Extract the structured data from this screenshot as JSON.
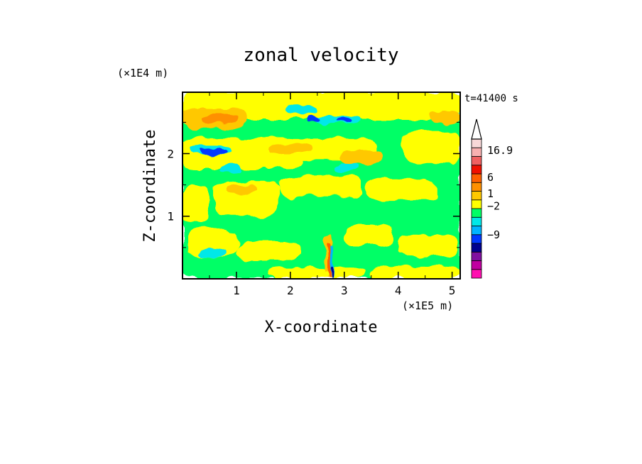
{
  "chart_data": {
    "type": "heatmap",
    "title": "zonal velocity",
    "xlabel": "X-coordinate",
    "ylabel": "Z-coordinate",
    "x_unit": "(×1E5 m)",
    "y_unit": "(×1E4 m)",
    "time_label": "t=41400 s",
    "xlim": [
      0,
      5.15
    ],
    "ylim": [
      0,
      2.98
    ],
    "x_ticks": [
      1,
      2,
      3,
      4,
      5
    ],
    "y_ticks": [
      1,
      2
    ],
    "colorbar": {
      "colors": [
        "#ff10b0",
        "#c000a0",
        "#8010a0",
        "#000090",
        "#0038ff",
        "#00b4ff",
        "#00e8e8",
        "#00ff66",
        "#ffff00",
        "#ffc800",
        "#ff9000",
        "#ff6000",
        "#f01000",
        "#f06060",
        "#f8b0b0",
        "#f8d8d8"
      ],
      "labels": [
        {
          "text": "16.9",
          "level": 14.7
        },
        {
          "text": "6",
          "level": 11.6
        },
        {
          "text": "1",
          "level": 9.7
        },
        {
          "text": "−2",
          "level": 8.3
        },
        {
          "text": "−9",
          "level": 5.0
        }
      ],
      "extend_max": true
    },
    "regions": [
      {
        "x": [
          0,
          5.15
        ],
        "y": [
          0,
          2.98
        ],
        "color": "#00ff66"
      },
      {
        "x": [
          0,
          5.15
        ],
        "y": [
          2.55,
          2.98
        ],
        "color": "#ffff00"
      },
      {
        "x": [
          0,
          2.2
        ],
        "y": [
          1.75,
          2.25
        ],
        "color": "#ffff00"
      },
      {
        "x": [
          4.1,
          5.15
        ],
        "y": [
          1.85,
          2.35
        ],
        "color": "#ffff00"
      },
      {
        "x": [
          1.6,
          3.6
        ],
        "y": [
          1.9,
          2.25
        ],
        "color": "#ffff00"
      },
      {
        "x": [
          0,
          0.5
        ],
        "y": [
          0.9,
          1.5
        ],
        "color": "#ffff00"
      },
      {
        "x": [
          0.6,
          1.8
        ],
        "y": [
          1.0,
          1.55
        ],
        "color": "#ffff00"
      },
      {
        "x": [
          1.8,
          3.3
        ],
        "y": [
          1.3,
          1.65
        ],
        "color": "#ffff00"
      },
      {
        "x": [
          3.4,
          4.7
        ],
        "y": [
          1.25,
          1.6
        ],
        "color": "#ffff00"
      },
      {
        "x": [
          0.1,
          1.0
        ],
        "y": [
          0.35,
          0.8
        ],
        "color": "#ffff00"
      },
      {
        "x": [
          1.0,
          2.2
        ],
        "y": [
          0.3,
          0.6
        ],
        "color": "#ffff00"
      },
      {
        "x": [
          3.0,
          3.9
        ],
        "y": [
          0.55,
          0.85
        ],
        "color": "#ffff00"
      },
      {
        "x": [
          4.0,
          5.1
        ],
        "y": [
          0.35,
          0.7
        ],
        "color": "#ffff00"
      },
      {
        "x": [
          1.6,
          3.4
        ],
        "y": [
          0.0,
          0.18
        ],
        "color": "#ffff00"
      },
      {
        "x": [
          3.5,
          5.15
        ],
        "y": [
          0.0,
          0.2
        ],
        "color": "#ffff00"
      },
      {
        "x": [
          0.0,
          1.2
        ],
        "y": [
          2.4,
          2.72
        ],
        "color": "#ffc800"
      },
      {
        "x": [
          0.4,
          1.0
        ],
        "y": [
          2.48,
          2.64
        ],
        "color": "#ff9000"
      },
      {
        "x": [
          1.6,
          2.4
        ],
        "y": [
          2.0,
          2.15
        ],
        "color": "#ffc800"
      },
      {
        "x": [
          2.9,
          3.7
        ],
        "y": [
          1.85,
          2.05
        ],
        "color": "#ffc800"
      },
      {
        "x": [
          4.6,
          5.15
        ],
        "y": [
          2.48,
          2.68
        ],
        "color": "#ffc800"
      },
      {
        "x": [
          0.8,
          1.4
        ],
        "y": [
          1.38,
          1.5
        ],
        "color": "#ffc800"
      },
      {
        "x": [
          1.9,
          2.5
        ],
        "y": [
          2.62,
          2.78
        ],
        "color": "#00e8e8"
      },
      {
        "x": [
          2.4,
          3.3
        ],
        "y": [
          2.48,
          2.6
        ],
        "color": "#00e8e8"
      },
      {
        "x": [
          0.1,
          0.9
        ],
        "y": [
          1.98,
          2.12
        ],
        "color": "#00e8e8"
      },
      {
        "x": [
          0.7,
          1.1
        ],
        "y": [
          1.68,
          1.8
        ],
        "color": "#00e8e8"
      },
      {
        "x": [
          2.8,
          3.3
        ],
        "y": [
          1.72,
          1.86
        ],
        "color": "#00e8e8"
      },
      {
        "x": [
          0.3,
          0.8
        ],
        "y": [
          0.35,
          0.48
        ],
        "color": "#00e8e8"
      },
      {
        "x": [
          2.3,
          2.5
        ],
        "y": [
          2.5,
          2.58
        ],
        "color": "#0038ff"
      },
      {
        "x": [
          2.88,
          3.12
        ],
        "y": [
          2.5,
          2.57
        ],
        "color": "#0038ff"
      },
      {
        "x": [
          0.28,
          0.82
        ],
        "y": [
          1.98,
          2.08
        ],
        "color": "#0038ff"
      },
      {
        "x": [
          2.62,
          2.78
        ],
        "y": [
          0.0,
          0.7
        ],
        "color": "#ffc800"
      },
      {
        "x": [
          2.68,
          2.76
        ],
        "y": [
          0.0,
          0.6
        ],
        "color": "#ff6000"
      },
      {
        "x": [
          2.74,
          2.8
        ],
        "y": [
          0.0,
          0.55
        ],
        "color": "#00b4ff"
      },
      {
        "x": [
          2.75,
          2.79
        ],
        "y": [
          0.0,
          0.2
        ],
        "color": "#000090"
      },
      {
        "x": [
          2.55,
          2.68
        ],
        "y": [
          0.0,
          0.12
        ],
        "color": "#ffff00"
      }
    ]
  }
}
